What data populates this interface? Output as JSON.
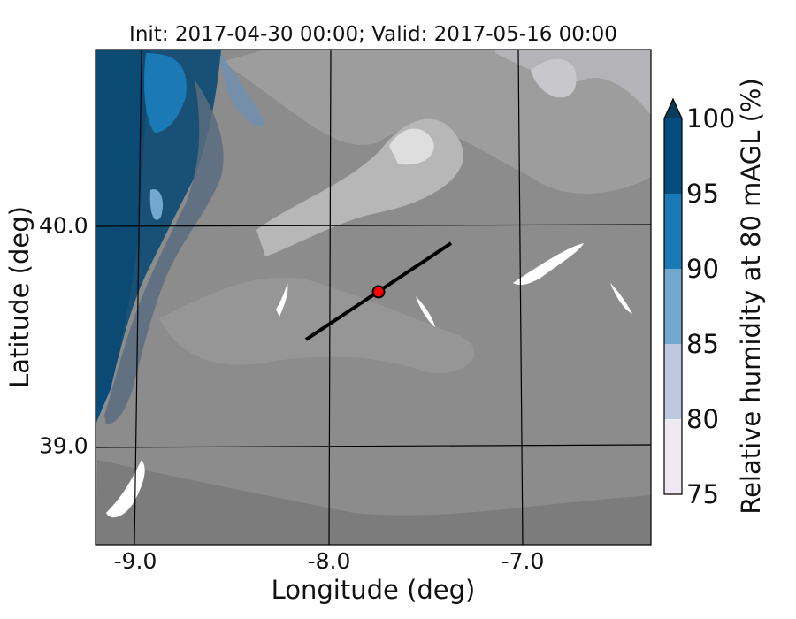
{
  "title": "Init: 2017-04-30 00:00; Valid: 2017-05-16 00:00",
  "xaxis": {
    "label": "Longitude (deg)",
    "ticks": [
      "-9.0",
      "-8.0",
      "-7.0"
    ]
  },
  "yaxis": {
    "label": "Latitude (deg)",
    "ticks": [
      "40.0",
      "39.0"
    ]
  },
  "colorbar": {
    "label": "Relative humidity at 80 mAGL (%)",
    "ticks": [
      "100",
      "95",
      "90",
      "85",
      "80",
      "75"
    ],
    "levels": [
      {
        "range": "75-80",
        "color": "#efe9f3"
      },
      {
        "range": "80-85",
        "color": "#bec8e0"
      },
      {
        "range": "85-90",
        "color": "#72a8d0"
      },
      {
        "range": "90-95",
        "color": "#1b7ab5"
      },
      {
        "range": "95-100",
        "color": "#044d7e"
      },
      {
        "range": ">100",
        "color": "#0b3b5a"
      }
    ],
    "extend": "max"
  },
  "map": {
    "terrain_color": "#8c8c8c",
    "transect_line": {
      "color": "#000000"
    },
    "site_marker": {
      "color": "#ff0000",
      "edge_color": "#000000"
    }
  }
}
